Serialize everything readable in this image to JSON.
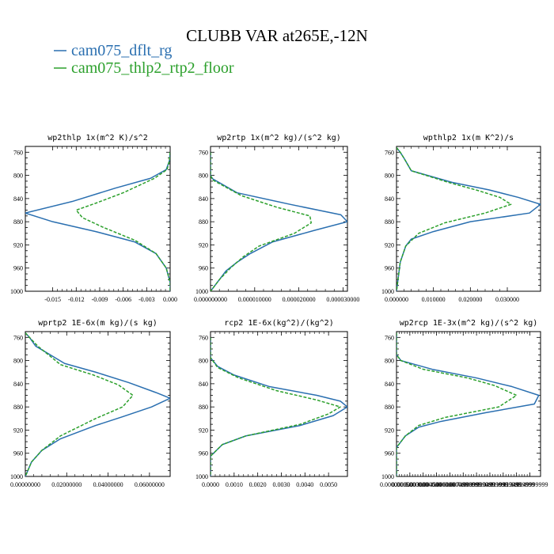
{
  "title": "CLUBB VAR at265E,-12N",
  "colors": {
    "series1": "#2a6fb0",
    "series2": "#2ca02c"
  },
  "legend": [
    {
      "label": "cam075_dflt_rg",
      "color": "#2a6fb0",
      "dash": "solid"
    },
    {
      "label": "cam075_thlp2_rtp2_floor",
      "color": "#2ca02c",
      "dash": "dashed"
    }
  ],
  "chart_data": [
    {
      "type": "line",
      "title": "wp2thlp   1x(m^2 K)/s^2",
      "ylim": [
        1000,
        750
      ],
      "yticks": [
        760,
        800,
        840,
        880,
        920,
        960,
        1000
      ],
      "xlim": [
        -0.0185,
        0.0
      ],
      "xticks": [
        -0.015,
        -0.012,
        -0.009,
        -0.006,
        -0.003,
        0.0
      ],
      "xtick_labels": [
        "-0.015",
        "-0.012",
        "-0.009",
        "-0.006",
        "-0.003",
        "0.000"
      ],
      "series": [
        {
          "name": "cam075_dflt_rg",
          "points": [
            [
              0,
              760
            ],
            [
              -0.0001,
              775
            ],
            [
              -0.0005,
              790
            ],
            [
              -0.0025,
              805
            ],
            [
              -0.007,
              822
            ],
            [
              -0.0125,
              845
            ],
            [
              -0.0185,
              865
            ],
            [
              -0.015,
              880
            ],
            [
              -0.0095,
              897
            ],
            [
              -0.0045,
              915
            ],
            [
              -0.0018,
              935
            ],
            [
              -0.0005,
              960
            ],
            [
              0,
              985
            ],
            [
              0,
              1000
            ]
          ]
        },
        {
          "name": "cam075_thlp2_rtp2_floor",
          "points": [
            [
              0,
              760
            ],
            [
              -0.0001,
              775
            ],
            [
              -0.0004,
              790
            ],
            [
              -0.002,
              805
            ],
            [
              -0.006,
              830
            ],
            [
              -0.0095,
              848
            ],
            [
              -0.012,
              860
            ],
            [
              -0.0112,
              873
            ],
            [
              -0.0085,
              890
            ],
            [
              -0.0045,
              912
            ],
            [
              -0.0018,
              935
            ],
            [
              -0.0005,
              960
            ],
            [
              0,
              985
            ],
            [
              0,
              1000
            ]
          ]
        }
      ]
    },
    {
      "type": "line",
      "title": "wp2rtp  1x(m^2 kg)/(s^2 kg)",
      "ylim": [
        1000,
        750
      ],
      "yticks": [
        760,
        800,
        840,
        880,
        920,
        960,
        1000
      ],
      "xlim": [
        0,
        3.1e-05
      ],
      "xticks": [
        0,
        1e-05,
        2e-05,
        3e-05
      ],
      "xtick_labels": [
        "0.000000000",
        "0.000010000",
        "0.000020000",
        "0.000030000"
      ],
      "series": [
        {
          "name": "cam075_dflt_rg",
          "points": [
            [
              0,
              760
            ],
            [
              0,
              800
            ],
            [
              5e-07,
              806
            ],
            [
              6e-06,
              830
            ],
            [
              1.8e-05,
              850
            ],
            [
              2.95e-05,
              868
            ],
            [
              3.1e-05,
              880
            ],
            [
              2.35e-05,
              895
            ],
            [
              1.4e-05,
              915
            ],
            [
              9e-06,
              935
            ],
            [
              6e-06,
              950
            ],
            [
              3.5e-06,
              965
            ],
            [
              1e-06,
              990
            ],
            [
              0,
              1000
            ]
          ]
        },
        {
          "name": "cam075_thlp2_rtp2_floor",
          "points": [
            [
              0,
              760
            ],
            [
              0,
              800
            ],
            [
              5e-07,
              808
            ],
            [
              7e-06,
              835
            ],
            [
              1.5e-05,
              855
            ],
            [
              2.25e-05,
              870
            ],
            [
              2.28e-05,
              882
            ],
            [
              1.9e-05,
              900
            ],
            [
              1.1e-05,
              922
            ],
            [
              7.5e-06,
              940
            ],
            [
              4.5e-06,
              960
            ],
            [
              2e-06,
              980
            ],
            [
              0,
              1000
            ]
          ]
        }
      ]
    },
    {
      "type": "line",
      "title": "wpthlp2  1x(m K^2)/s",
      "ylim": [
        1000,
        750
      ],
      "yticks": [
        760,
        800,
        840,
        880,
        920,
        960,
        1000
      ],
      "xlim": [
        0,
        0.039
      ],
      "xticks": [
        0,
        0.01,
        0.02,
        0.03
      ],
      "xtick_labels": [
        "0.000000",
        "0.010000",
        "0.020000",
        "0.030000"
      ],
      "series": [
        {
          "name": "cam075_dflt_rg",
          "points": [
            [
              0,
              752
            ],
            [
              0.001,
              760
            ],
            [
              0.002,
              770
            ],
            [
              0.004,
              792
            ],
            [
              0.015,
              812
            ],
            [
              0.025,
              825
            ],
            [
              0.033,
              838
            ],
            [
              0.039,
              850
            ],
            [
              0.036,
              865
            ],
            [
              0.02,
              880
            ],
            [
              0.01,
              897
            ],
            [
              0.004,
              910
            ],
            [
              0.0025,
              922
            ],
            [
              0.001,
              950
            ],
            [
              0,
              1000
            ]
          ]
        },
        {
          "name": "cam075_thlp2_rtp2_floor",
          "points": [
            [
              0,
              752
            ],
            [
              0.001,
              760
            ],
            [
              0.002,
              770
            ],
            [
              0.004,
              792
            ],
            [
              0.014,
              812
            ],
            [
              0.022,
              826
            ],
            [
              0.028,
              838
            ],
            [
              0.031,
              850
            ],
            [
              0.024,
              865
            ],
            [
              0.013,
              882
            ],
            [
              0.006,
              900
            ],
            [
              0.0025,
              922
            ],
            [
              0.001,
              950
            ],
            [
              0,
              1000
            ]
          ]
        }
      ]
    },
    {
      "type": "line",
      "title": "wprtp2  1E-6x(m kg)/(s kg)",
      "ylim": [
        1000,
        750
      ],
      "yticks": [
        760,
        800,
        840,
        880,
        920,
        960,
        1000
      ],
      "xlim": [
        0,
        0.07
      ],
      "xticks": [
        0,
        0.02,
        0.04,
        0.06
      ],
      "xtick_labels": [
        "0.00000000",
        "0.02000000",
        "0.04000000",
        "0.06000000"
      ],
      "series": [
        {
          "name": "cam075_dflt_rg",
          "points": [
            [
              0,
              752
            ],
            [
              0.002,
              760
            ],
            [
              0.005,
              775
            ],
            [
              0.019,
              805
            ],
            [
              0.034,
              820
            ],
            [
              0.05,
              838
            ],
            [
              0.063,
              855
            ],
            [
              0.07,
              865
            ],
            [
              0.061,
              880
            ],
            [
              0.047,
              897
            ],
            [
              0.034,
              912
            ],
            [
              0.017,
              935
            ],
            [
              0.008,
              955
            ],
            [
              0.003,
              975
            ],
            [
              0,
              1000
            ]
          ]
        },
        {
          "name": "cam075_thlp2_rtp2_floor",
          "points": [
            [
              0,
              752
            ],
            [
              0.002,
              760
            ],
            [
              0.006,
              775
            ],
            [
              0.017,
              807
            ],
            [
              0.033,
              825
            ],
            [
              0.045,
              842
            ],
            [
              0.052,
              860
            ],
            [
              0.047,
              880
            ],
            [
              0.034,
              900
            ],
            [
              0.017,
              930
            ],
            [
              0.008,
              955
            ],
            [
              0.003,
              975
            ],
            [
              0,
              1000
            ]
          ]
        }
      ]
    },
    {
      "type": "line",
      "title": "rcp2  1E-6x(kg^2)/(kg^2)",
      "ylim": [
        1000,
        750
      ],
      "yticks": [
        760,
        800,
        840,
        880,
        920,
        960,
        1000
      ],
      "xlim": [
        0,
        0.0058
      ],
      "xticks": [
        0,
        0.001,
        0.002,
        0.003,
        0.004,
        0.005
      ],
      "xtick_labels": [
        "0.0000",
        "0.0010",
        "0.0020",
        "0.0030",
        "0.0040",
        "0.0050"
      ],
      "series": [
        {
          "name": "cam075_dflt_rg",
          "points": [
            [
              0,
              760
            ],
            [
              0,
              795
            ],
            [
              0.0003,
              810
            ],
            [
              0.001,
              825
            ],
            [
              0.0025,
              845
            ],
            [
              0.0045,
              860
            ],
            [
              0.0055,
              870
            ],
            [
              0.0058,
              880
            ],
            [
              0.0052,
              895
            ],
            [
              0.0038,
              912
            ],
            [
              0.0015,
              930
            ],
            [
              0.0005,
              945
            ],
            [
              0,
              965
            ],
            [
              0,
              1000
            ]
          ]
        },
        {
          "name": "cam075_thlp2_rtp2_floor",
          "points": [
            [
              0,
              760
            ],
            [
              0,
              795
            ],
            [
              0.0003,
              812
            ],
            [
              0.0012,
              830
            ],
            [
              0.0028,
              852
            ],
            [
              0.0045,
              868
            ],
            [
              0.0055,
              880
            ],
            [
              0.005,
              892
            ],
            [
              0.0038,
              910
            ],
            [
              0.0015,
              930
            ],
            [
              0.0005,
              945
            ],
            [
              0,
              965
            ],
            [
              0,
              1000
            ]
          ]
        }
      ]
    },
    {
      "type": "line",
      "title": "wp2rcp  1E-3x(m^2 kg)/(s^2 kg)",
      "ylim": [
        1000,
        750
      ],
      "yticks": [
        760,
        800,
        840,
        880,
        920,
        960,
        1000
      ],
      "xlim": [
        0,
        0.0162
      ],
      "xticks": [
        0,
        0.0015,
        0.003,
        0.0045,
        0.006,
        0.0075,
        0.009,
        0.0105,
        0.012,
        0.0135,
        0.015
      ],
      "xtick_labels": [
        "0.000000000",
        "0.0015000000",
        "0.0030000000",
        "0.0045000000",
        "0.0060000000",
        "0.0074999999",
        "0.0089999999",
        "0.0104999999",
        "0.0119999999",
        "0.0134999999",
        "0.0149999999"
      ],
      "series": [
        {
          "name": "cam075_dflt_rg",
          "points": [
            [
              0,
              752
            ],
            [
              0,
              790
            ],
            [
              0.0005,
              800
            ],
            [
              0.004,
              815
            ],
            [
              0.009,
              830
            ],
            [
              0.013,
              845
            ],
            [
              0.016,
              860
            ],
            [
              0.0155,
              875
            ],
            [
              0.01,
              890
            ],
            [
              0.005,
              905
            ],
            [
              0.0025,
              915
            ],
            [
              0.001,
              930
            ],
            [
              0,
              950
            ],
            [
              0,
              1000
            ]
          ]
        },
        {
          "name": "cam075_thlp2_rtp2_floor",
          "points": [
            [
              0,
              752
            ],
            [
              0,
              790
            ],
            [
              0.0005,
              800
            ],
            [
              0.003,
              815
            ],
            [
              0.008,
              830
            ],
            [
              0.011,
              843
            ],
            [
              0.0135,
              860
            ],
            [
              0.0115,
              880
            ],
            [
              0.0055,
              898
            ],
            [
              0.0025,
              912
            ],
            [
              0.001,
              930
            ],
            [
              0,
              950
            ],
            [
              0,
              1000
            ]
          ]
        }
      ]
    }
  ]
}
